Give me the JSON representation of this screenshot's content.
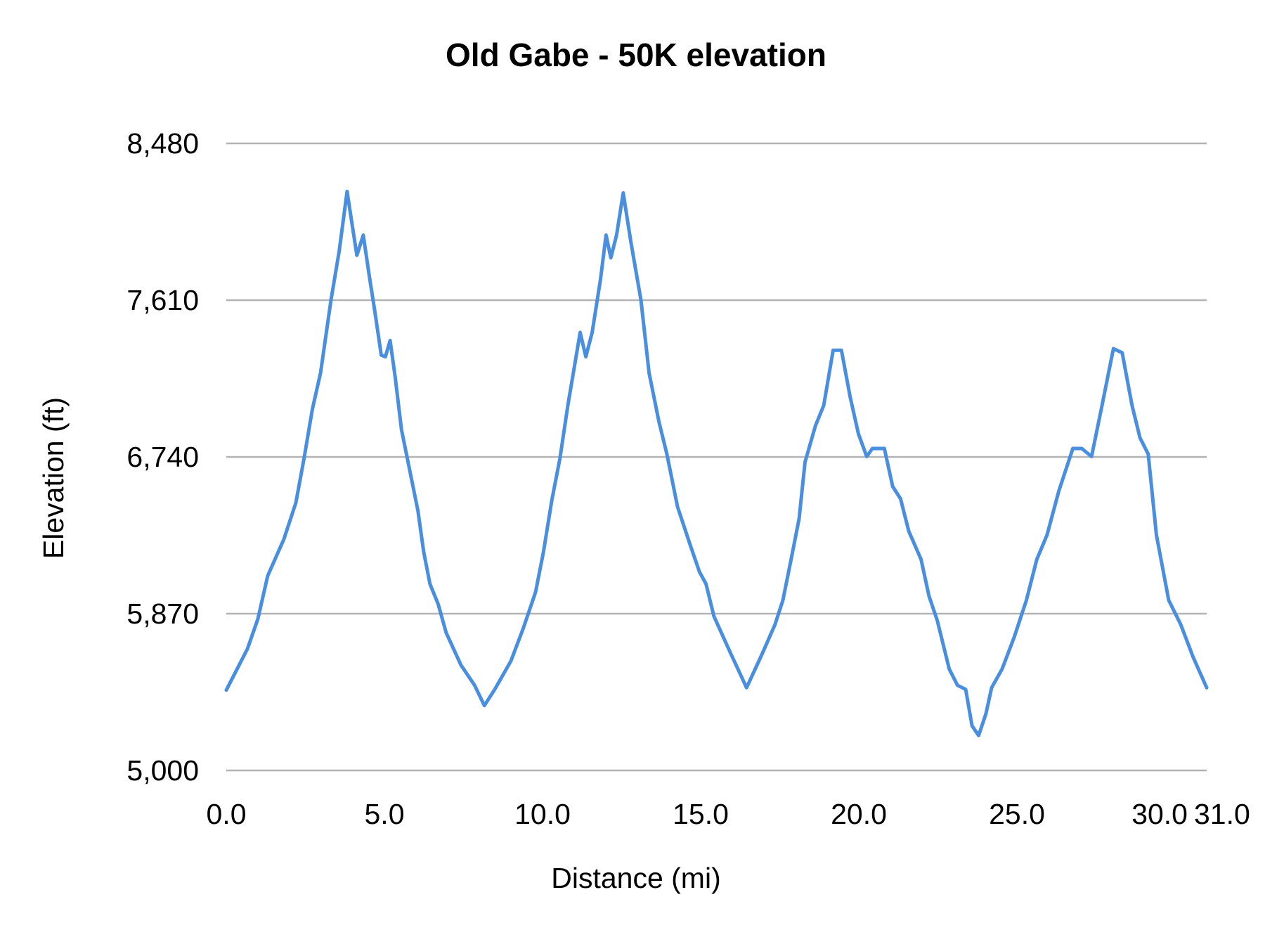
{
  "chart_data": {
    "type": "line",
    "title": "Old Gabe - 50K elevation",
    "xlabel": "Distance (mi)",
    "ylabel": "Elevation (ft)",
    "xlim": [
      0,
      31
    ],
    "ylim": [
      5000,
      8480
    ],
    "x_ticks": [
      "0.0",
      "5.0",
      "10.0",
      "15.0",
      "20.0",
      "25.0",
      "30.0",
      "31.0"
    ],
    "x_tick_values": [
      0,
      5,
      10,
      15,
      20,
      25,
      30,
      31
    ],
    "y_ticks": [
      "5,000",
      "5,870",
      "6,740",
      "7,610",
      "8,480"
    ],
    "y_tick_values": [
      5000,
      5870,
      6740,
      7610,
      8480
    ],
    "grid": "horizontal",
    "legend": "none",
    "line_color": "#4a8ee0",
    "grid_color": "#b3b3b3",
    "series": [
      {
        "x": [
          0,
          0.67,
          1.0,
          1.31,
          1.82,
          2.2,
          2.46,
          2.72,
          2.98,
          3.31,
          3.57,
          3.82,
          3.95,
          4.13,
          4.33,
          4.52,
          4.7,
          4.9,
          5.03,
          5.18,
          5.34,
          5.54,
          5.8,
          6.06,
          6.24,
          6.44,
          6.7,
          6.95,
          7.42,
          7.85,
          8.16,
          8.49,
          9.0,
          9.39,
          9.78,
          10.03,
          10.29,
          10.55,
          10.8,
          11.06,
          11.19,
          11.37,
          11.57,
          11.83,
          12.01,
          12.16,
          12.34,
          12.55,
          12.8,
          13.11,
          13.37,
          13.68,
          13.93,
          14.27,
          14.65,
          14.96,
          15.17,
          15.42,
          15.94,
          16.45,
          16.96,
          17.35,
          17.6,
          17.86,
          18.11,
          18.3,
          18.63,
          18.89,
          19.19,
          19.45,
          19.73,
          19.99,
          20.25,
          20.43,
          20.81,
          21.07,
          21.32,
          21.58,
          21.97,
          22.22,
          22.48,
          22.86,
          23.12,
          23.38,
          23.58,
          23.79,
          24.02,
          24.2,
          24.53,
          24.92,
          25.3,
          25.63,
          25.95,
          26.33,
          26.77,
          27.05,
          27.36,
          27.69,
          28.05,
          28.33,
          28.64,
          28.89,
          29.15,
          29.41,
          29.8,
          30.18,
          30.57,
          31.0
        ],
        "y": [
          5446,
          5675,
          5842,
          6080,
          6283,
          6486,
          6733,
          7003,
          7206,
          7611,
          7881,
          8214,
          8061,
          7859,
          7971,
          7746,
          7544,
          7305,
          7296,
          7386,
          7183,
          6891,
          6666,
          6441,
          6215,
          6035,
          5923,
          5765,
          5585,
          5473,
          5360,
          5450,
          5608,
          5788,
          5990,
          6215,
          6495,
          6733,
          7026,
          7296,
          7431,
          7296,
          7431,
          7724,
          7971,
          7845,
          7971,
          8205,
          7926,
          7611,
          7206,
          6936,
          6756,
          6463,
          6261,
          6103,
          6035,
          5855,
          5653,
          5459,
          5653,
          5810,
          5945,
          6171,
          6396,
          6711,
          6913,
          7026,
          7332,
          7332,
          7071,
          6868,
          6742,
          6787,
          6787,
          6576,
          6508,
          6328,
          6171,
          5968,
          5833,
          5563,
          5473,
          5450,
          5248,
          5194,
          5315,
          5459,
          5563,
          5743,
          5945,
          6171,
          6306,
          6553,
          6787,
          6787,
          6742,
          7026,
          7341,
          7318,
          7026,
          6846,
          6756,
          6306,
          5945,
          5810,
          5630,
          5459
        ]
      }
    ]
  }
}
